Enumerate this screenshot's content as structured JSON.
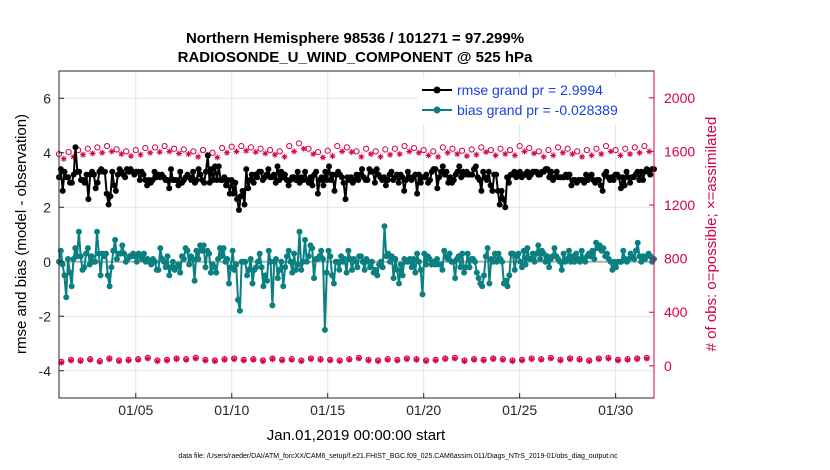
{
  "chart_data": {
    "type": "line",
    "title": "Northern Hemisphere 98536 / 101271 = 97.299%",
    "subtitle": "RADIOSONDE_U_WIND_COMPONENT @ 525 hPa",
    "xlabel": "Jan.01,2019 00:00:00 start",
    "ylabel": "rmse and bias (model - observation)",
    "ylabel_right": "# of obs: o=possible; ×=assimilated",
    "xlim": [
      1,
      32
    ],
    "ylim": [
      -5,
      7
    ],
    "ylim_right": [
      -240,
      2200
    ],
    "x_ticks": [
      5,
      10,
      15,
      20,
      25,
      30
    ],
    "x_tick_labels": [
      "01/05",
      "01/10",
      "01/15",
      "01/20",
      "01/25",
      "01/30"
    ],
    "y_ticks": [
      -4,
      -2,
      0,
      2,
      4,
      6
    ],
    "y_tick_labels": [
      "-4",
      "-2",
      "0",
      "2",
      "4",
      "6"
    ],
    "y_right_ticks": [
      0,
      400,
      800,
      1200,
      1600,
      2000
    ],
    "y_right_tick_labels": [
      "0",
      "400",
      "800",
      "1200",
      "1600",
      "2000"
    ],
    "footnote": "data file: /Users/raeder/DAI/ATM_forcXX/CAM6_setup/f.e21.FHIST_BGC.f09_025.CAM6assim.011/Diags_NTrS_2019-01/obs_diag_output.nc",
    "grid": true,
    "legend_position": "top-right",
    "series": [
      {
        "name": "rmse grand pr = 2.9994",
        "color": "#000000",
        "axis": "left",
        "values": [
          3.1,
          3.4,
          2.6,
          3.3,
          3.1,
          3.1,
          2.9,
          2.9,
          3.2,
          4.2,
          3.3,
          3.3,
          3.0,
          3.0,
          2.9,
          3.2,
          2.3,
          3.2,
          3.3,
          3.2,
          2.7,
          2.9,
          3.3,
          3.4,
          3.3,
          3.3,
          2.5,
          2.1,
          2.4,
          3.3,
          2.8,
          2.6,
          3.2,
          3.4,
          3.3,
          3.2,
          3.1,
          3.4,
          3.3,
          3.4,
          3.3,
          3.2,
          3.3,
          3.3,
          3.0,
          3.3,
          3.2,
          3.0,
          2.8,
          3.0,
          2.9,
          3.0,
          3.3,
          3.1,
          3.2,
          3.1,
          3.2,
          3.1,
          3.0,
          3.0,
          2.7,
          3.4,
          3.0,
          3.0,
          3.0,
          2.8,
          3.3,
          2.9,
          3.0,
          3.1,
          3.2,
          3.1,
          3.0,
          3.3,
          2.9,
          3.0,
          3.4,
          3.2,
          3.0,
          2.9,
          3.3,
          3.9,
          2.9,
          3.4,
          3.0,
          3.5,
          3.0,
          3.5,
          3.0,
          3.0,
          3.1,
          2.8,
          3.0,
          2.5,
          3.0,
          2.5,
          2.9,
          2.3,
          1.9,
          2.4,
          2.6,
          2.1,
          3.4,
          2.7,
          3.0,
          3.2,
          2.9,
          3.2,
          3.1,
          3.3,
          3.3,
          3.0,
          3.1,
          3.2,
          3.4,
          3.1,
          3.1,
          3.2,
          2.9,
          3.5,
          3.0,
          3.3,
          3.1,
          3.2,
          3.0,
          2.8,
          3.0,
          3.1,
          3.1,
          3.0,
          3.3,
          2.9,
          3.1,
          3.0,
          3.3,
          3.0,
          2.9,
          3.1,
          2.8,
          3.2,
          3.3,
          2.5,
          3.0,
          3.1,
          2.8,
          3.3,
          3.0,
          3.5,
          3.0,
          3.2,
          2.6,
          3.2,
          3.3,
          3.2,
          3.1,
          2.9,
          2.3,
          3.1,
          3.0,
          3.1,
          2.9,
          3.0,
          3.2,
          3.0,
          3.2,
          3.4,
          3.1,
          3.0,
          3.0,
          3.4,
          3.3,
          3.3,
          2.9,
          3.4,
          3.2,
          3.1,
          3.0,
          3.1,
          2.8,
          3.0,
          3.2,
          3.3,
          3.0,
          3.1,
          3.2,
          2.9,
          3.2,
          3.1,
          2.6,
          3.0,
          3.3,
          3.1,
          3.0,
          3.1,
          3.2,
          2.5,
          3.2,
          2.9,
          3.1,
          3.1,
          3.2,
          2.9,
          3.0,
          3.3,
          3.4,
          3.4,
          2.7,
          3.1,
          3.3,
          3.5,
          3.2,
          3.3,
          2.9,
          3.1,
          2.9,
          3.0,
          3.2,
          3.3,
          3.5,
          3.1,
          3.3,
          3.2,
          3.3,
          3.2,
          3.2,
          3.2,
          3.4,
          3.5,
          3.1,
          3.0,
          2.6,
          3.3,
          3.1,
          3.0,
          3.3,
          2.8,
          2.6,
          3.2,
          3.2,
          2.6,
          2.1,
          2.6,
          2.3,
          2.0,
          3.1,
          2.9,
          3.2,
          3.2,
          3.3,
          3.1,
          3.2,
          3.3,
          3.1,
          3.2,
          3.2,
          3.3,
          3.1,
          3.2,
          3.3,
          3.3,
          3.3,
          3.2,
          3.2,
          3.3,
          3.3,
          3.4,
          3.4,
          3.1,
          3.3,
          3.0,
          3.1,
          3.3,
          3.1,
          3.1,
          3.1,
          3.1,
          3.2,
          3.1,
          3.2,
          2.8,
          3.0,
          3.0,
          2.9,
          3.0,
          3.0,
          3.0,
          2.9,
          3.2,
          3.0,
          3.1,
          3.2,
          3.0,
          2.9,
          3.0,
          3.0,
          2.8,
          2.6,
          3.2,
          3.3,
          3.1,
          3.0,
          3.1,
          3.0,
          3.2,
          3.2,
          3.1,
          2.7,
          3.1,
          2.8,
          3.3,
          3.1,
          2.9,
          3.1,
          3.1,
          3.2,
          3.3,
          3.0,
          3.3,
          3.0,
          3.3,
          3.4,
          3.3,
          3.2,
          3.4,
          3.4
        ]
      },
      {
        "name": "bias grand pr = -0.028389",
        "color": "#0a8080",
        "axis": "left",
        "values": [
          0.0,
          0.4,
          -0.1,
          -0.5,
          -1.3,
          0.1,
          -0.4,
          -0.9,
          0.1,
          0.5,
          0.2,
          1.1,
          0.2,
          -0.3,
          -0.2,
          0.3,
          0.5,
          -0.1,
          0.2,
          0.0,
          0.0,
          1.1,
          0.3,
          -0.5,
          0.3,
          0.2,
          0.3,
          -0.5,
          -0.9,
          -0.2,
          0.4,
          0.8,
          0.1,
          0.3,
          0.3,
          0.6,
          0.3,
          0.0,
          0.1,
          0.2,
          0.2,
          0.3,
          0.2,
          0.0,
          0.3,
          0.2,
          0.1,
          0.3,
          0.0,
          0.1,
          0.0,
          -0.1,
          0.1,
          0.0,
          -0.3,
          -0.3,
          0.5,
          0.1,
          0.0,
          -0.2,
          0.2,
          -0.5,
          -0.2,
          0.0,
          -0.3,
          -0.2,
          -0.1,
          -0.4,
          0.2,
          0.1,
          0.5,
          0.4,
          -0.1,
          0.2,
          0.1,
          -0.7,
          0.4,
          0.1,
          0.6,
          0.4,
          0.6,
          -0.2,
          0.4,
          0.3,
          -0.4,
          -0.1,
          -0.2,
          -0.4,
          0.1,
          0.5,
          0.2,
          0.5,
          0.0,
          0.1,
          -0.8,
          -0.2,
          0.4,
          -0.3,
          -0.1,
          -1.4,
          -1.8,
          0.0,
          0.0,
          0.0,
          -0.5,
          -0.3,
          0.1,
          -0.8,
          -0.3,
          -0.2,
          0.0,
          0.3,
          -0.2,
          -0.9,
          -0.5,
          -0.7,
          0.4,
          0.0,
          -1.6,
          0.0,
          0.1,
          -0.6,
          -0.3,
          0.0,
          -0.9,
          -0.2,
          0.2,
          0.4,
          0.0,
          -0.4,
          0.3,
          -0.3,
          -0.1,
          1.1,
          -0.3,
          0.0,
          0.8,
          0.0,
          0.2,
          0.6,
          0.5,
          -0.6,
          0.1,
          0.1,
          0.2,
          0.4,
          0.1,
          -2.5,
          -0.4,
          0.4,
          0.2,
          -0.5,
          -0.8,
          0.0,
          0.0,
          -0.3,
          0.2,
          0.0,
          0.1,
          -0.4,
          0.4,
          0.1,
          -0.3,
          0.1,
          0.0,
          -0.2,
          0.2,
          0.2,
          0.0,
          -0.3,
          0.1,
          0.0,
          -0.2,
          0.0,
          -0.4,
          -0.3,
          -0.5,
          -0.1,
          0.0,
          -0.2,
          1.3,
          0.2,
          0.3,
          0.0,
          0.2,
          -0.6,
          0.1,
          -0.3,
          -0.8,
          -0.1,
          -0.5,
          0.1,
          0.0,
          0.0,
          0.1,
          -0.2,
          0.1,
          -0.4,
          0.3,
          0.0,
          -0.3,
          -1.2,
          0.3,
          -0.1,
          0.2,
          0.1,
          -0.1,
          0.0,
          -0.1,
          0.1,
          -0.1,
          -0.1,
          -0.3,
          0.4,
          0.2,
          0.1,
          0.3,
          0.0,
          0.0,
          -0.6,
          0.1,
          0.2,
          -0.2,
          0.3,
          -0.4,
          -0.2,
          0.3,
          -0.2,
          0.1,
          0.1,
          0.0,
          -0.4,
          -0.6,
          -0.8,
          -0.9,
          -0.5,
          0.2,
          0.5,
          -0.8,
          0.1,
          0.0,
          0.3,
          0.0,
          0.3,
          0.1,
          0.0,
          -0.8,
          -0.7,
          -0.9,
          -0.5,
          0.3,
          0.3,
          -0.3,
          0.2,
          0.3,
          0.0,
          -0.2,
          0.4,
          -0.1,
          0.5,
          0.1,
          0.1,
          0.3,
          0.0,
          0.3,
          0.6,
          0.1,
          0.4,
          0.3,
          0.0,
          0.2,
          -0.2,
          0.1,
          0.2,
          0.5,
          0.2,
          0.1,
          0.0,
          -0.3,
          0.3,
          0.0,
          0.1,
          0.4,
          0.0,
          0.2,
          0.0,
          0.3,
          0.1,
          0.0,
          0.4,
          0.1,
          0.0,
          0.2,
          0.3,
          0.2,
          0.4,
          0.1,
          0.7,
          0.5,
          0.6,
          0.4,
          0.5,
          0.2,
          0.3,
          0.1,
          0.0,
          -0.3,
          0.0,
          -0.2,
          0.0,
          0.0,
          0.0,
          0.4,
          0.1,
          0.0,
          0.1,
          0.3,
          0.2,
          0.1,
          0.4,
          0.7,
          0.2,
          0.0,
          0.2,
          0.1,
          0.2,
          0.3,
          0.2,
          0.0,
          0.1
        ]
      }
    ],
    "obs_counts": {
      "color": "#d4004e",
      "axis": "right",
      "possible_00z12z": [
        1580,
        1595,
        1610,
        1620,
        1630,
        1640,
        1615,
        1600,
        1610,
        1625,
        1630,
        1640,
        1620,
        1615,
        1600,
        1610,
        1590,
        1625,
        1635,
        1640,
        1630,
        1620,
        1610,
        1600,
        1640,
        1660,
        1620,
        1595,
        1605,
        1640,
        1630,
        1600,
        1620,
        1600,
        1615,
        1620,
        1640,
        1625,
        1610,
        1600,
        1630,
        1620,
        1605,
        1615,
        1630,
        1610,
        1620,
        1610,
        1640,
        1625,
        1600,
        1610,
        1630,
        1620,
        1600,
        1610,
        1620,
        1640,
        1610,
        1620,
        1630,
        1640
      ],
      "assimilated_00z12z": [
        1545,
        1560,
        1575,
        1585,
        1590,
        1600,
        1580,
        1565,
        1575,
        1590,
        1595,
        1600,
        1585,
        1580,
        1560,
        1575,
        1555,
        1590,
        1600,
        1605,
        1595,
        1585,
        1575,
        1560,
        1600,
        1620,
        1580,
        1555,
        1565,
        1600,
        1595,
        1560,
        1580,
        1560,
        1575,
        1580,
        1600,
        1590,
        1570,
        1560,
        1590,
        1580,
        1565,
        1575,
        1595,
        1570,
        1580,
        1570,
        1600,
        1585,
        1560,
        1570,
        1590,
        1580,
        1560,
        1570,
        1580,
        1600,
        1570,
        1580,
        1590,
        1600
      ],
      "possible_06z18z": [
        30,
        45,
        40,
        50,
        35,
        55,
        40,
        45,
        50,
        60,
        40,
        45,
        55,
        50,
        60,
        45,
        40,
        50,
        55,
        45,
        50,
        40,
        55,
        45,
        50,
        40,
        55,
        50,
        45,
        40,
        50,
        60,
        45,
        40,
        50,
        45,
        55,
        50,
        40,
        45,
        55,
        60,
        40,
        50,
        45,
        55,
        50,
        40,
        45,
        55,
        50,
        60,
        45,
        55,
        50,
        40,
        55,
        60,
        45,
        50,
        55,
        60
      ],
      "assimilated_06z18z": [
        25,
        40,
        35,
        45,
        30,
        50,
        35,
        40,
        45,
        55,
        35,
        40,
        50,
        45,
        55,
        40,
        35,
        45,
        50,
        40,
        45,
        35,
        50,
        40,
        45,
        35,
        50,
        45,
        40,
        35,
        45,
        55,
        40,
        35,
        45,
        40,
        50,
        45,
        35,
        40,
        50,
        55,
        35,
        45,
        40,
        50,
        45,
        35,
        40,
        50,
        45,
        55,
        40,
        50,
        45,
        35,
        50,
        55,
        40,
        45,
        50,
        55
      ]
    }
  }
}
